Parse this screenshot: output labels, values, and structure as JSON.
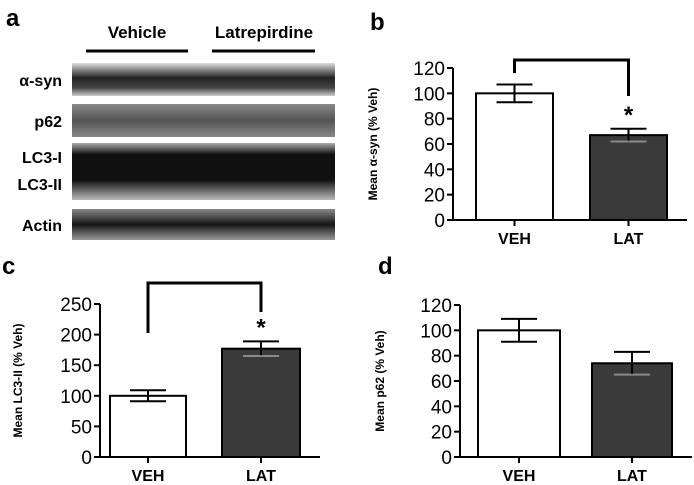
{
  "panel_a": {
    "label": "a",
    "groups": [
      "Vehicle",
      "Latrepirdine"
    ],
    "rows": [
      "α-syn",
      "p62",
      "LC3-I",
      "LC3-II",
      "Actin"
    ]
  },
  "chart_data": [
    {
      "panel": "b",
      "type": "bar",
      "categories": [
        "VEH",
        "LAT"
      ],
      "values": [
        100,
        67
      ],
      "errors": [
        7,
        5
      ],
      "colors": [
        "#ffffff",
        "#3a3a3a"
      ],
      "ylabel": "Mean α-syn (% Veh)",
      "ylim": [
        0,
        120
      ],
      "yticks": [
        0,
        20,
        40,
        60,
        80,
        100,
        120
      ],
      "significance": "*"
    },
    {
      "panel": "c",
      "type": "bar",
      "categories": [
        "VEH",
        "LAT"
      ],
      "values": [
        100,
        177
      ],
      "errors": [
        9,
        12
      ],
      "colors": [
        "#ffffff",
        "#3a3a3a"
      ],
      "ylabel": "Mean LC3-II (% Veh)",
      "ylim": [
        0,
        250
      ],
      "yticks": [
        0,
        50,
        100,
        150,
        200,
        250
      ],
      "significance": "*"
    },
    {
      "panel": "d",
      "type": "bar",
      "categories": [
        "VEH",
        "LAT"
      ],
      "values": [
        100,
        74
      ],
      "errors": [
        9,
        9
      ],
      "colors": [
        "#ffffff",
        "#3a3a3a"
      ],
      "ylabel": "Mean p62 (% Veh)",
      "ylim": [
        0,
        120
      ],
      "yticks": [
        0,
        20,
        40,
        60,
        80,
        100,
        120
      ],
      "significance": ""
    }
  ]
}
